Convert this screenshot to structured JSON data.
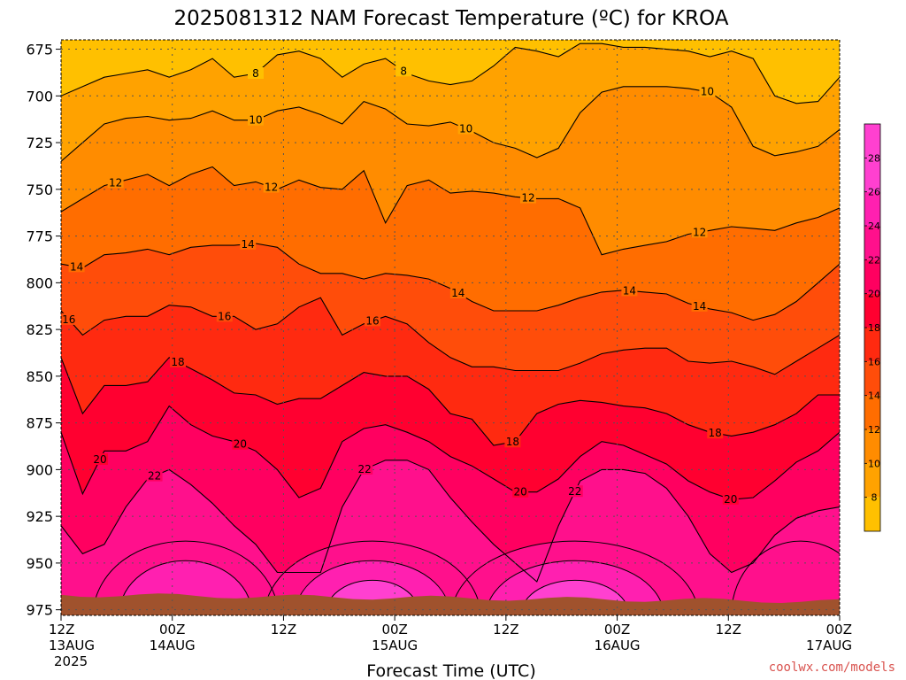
{
  "header": {
    "title": "2025081312 NAM Forecast Temperature (ºC) for KROA"
  },
  "footer": {
    "credit": "coolwx.com/models"
  },
  "colors": {
    "credit": "#d9534f",
    "ground": "#a0522d",
    "grid": "#555555",
    "levels": [
      "#ffc000",
      "#ffa200",
      "#ff8c00",
      "#ff6d00",
      "#ff4d0a",
      "#ff2a10",
      "#ff0030",
      "#ff0060",
      "#ff108c",
      "#ff20b0",
      "#ff40d0"
    ]
  },
  "chart_data": {
    "type": "heatmap",
    "title": "2025081312 NAM Forecast Temperature (ºC) for KROA",
    "xlabel": "Forecast Time (UTC)",
    "ylabel": "",
    "x_ticks": [
      {
        "label": "12Z",
        "sub": "13AUG",
        "sub2": "2025"
      },
      {
        "label": "00Z",
        "sub": "14AUG",
        "sub2": ""
      },
      {
        "label": "12Z",
        "sub": "",
        "sub2": ""
      },
      {
        "label": "00Z",
        "sub": "15AUG",
        "sub2": ""
      },
      {
        "label": "12Z",
        "sub": "",
        "sub2": ""
      },
      {
        "label": "00Z",
        "sub": "16AUG",
        "sub2": ""
      },
      {
        "label": "12Z",
        "sub": "",
        "sub2": ""
      },
      {
        "label": "00Z",
        "sub": "17AUG",
        "sub2": ""
      }
    ],
    "y_ticks": [
      675,
      700,
      725,
      750,
      775,
      800,
      825,
      850,
      875,
      900,
      925,
      950,
      975
    ],
    "ylim": [
      670,
      978
    ],
    "y_reversed": true,
    "contour_levels": [
      8,
      10,
      12,
      14,
      16,
      18,
      20,
      22,
      24,
      26,
      28
    ],
    "colorbar_ticks": [
      8,
      10,
      12,
      14,
      16,
      18,
      20,
      22,
      24,
      26,
      28
    ],
    "colorbar_range": [
      6,
      30
    ],
    "contour_labels": [
      "8",
      "8",
      "10",
      "10",
      "10",
      "12",
      "12",
      "12",
      "12",
      "14",
      "14",
      "14",
      "14",
      "14",
      "16",
      "16",
      "16",
      "18",
      "18",
      "18",
      "20",
      "20",
      "20",
      "20",
      "22",
      "22",
      "22"
    ],
    "series": [
      {
        "level": 8,
        "pressure": [
          700,
          695,
          690,
          688,
          686,
          690,
          686,
          680,
          690,
          688,
          678,
          676,
          680,
          690,
          683,
          680,
          688,
          692,
          694,
          692,
          684,
          674,
          676,
          679,
          672,
          672,
          674,
          674,
          675,
          676,
          679,
          676,
          680,
          700,
          704,
          703,
          690
        ]
      },
      {
        "level": 10,
        "pressure": [
          735,
          725,
          715,
          712,
          711,
          713,
          712,
          708,
          713,
          713,
          708,
          706,
          710,
          715,
          703,
          707,
          715,
          716,
          714,
          719,
          725,
          728,
          733,
          728,
          709,
          698,
          695,
          695,
          695,
          696,
          698,
          706,
          727,
          732,
          730,
          727,
          718
        ]
      },
      {
        "level": 12,
        "pressure": [
          762,
          755,
          748,
          745,
          742,
          748,
          742,
          738,
          748,
          746,
          750,
          745,
          749,
          750,
          740,
          768,
          748,
          745,
          752,
          751,
          752,
          754,
          755,
          755,
          760,
          785,
          782,
          780,
          778,
          774,
          772,
          770,
          771,
          772,
          768,
          765,
          760
        ]
      },
      {
        "level": 14,
        "pressure": [
          790,
          792,
          785,
          784,
          782,
          785,
          781,
          780,
          780,
          779,
          781,
          790,
          795,
          795,
          798,
          795,
          796,
          798,
          803,
          810,
          815,
          815,
          815,
          812,
          808,
          805,
          804,
          805,
          806,
          811,
          814,
          816,
          820,
          817,
          810,
          800,
          790
        ]
      },
      {
        "level": 16,
        "pressure": [
          815,
          828,
          820,
          818,
          818,
          812,
          813,
          818,
          818,
          825,
          822,
          813,
          808,
          828,
          822,
          818,
          822,
          832,
          840,
          845,
          845,
          847,
          847,
          847,
          843,
          838,
          836,
          835,
          835,
          842,
          843,
          842,
          845,
          849,
          842,
          835,
          828
        ]
      },
      {
        "level": 18,
        "pressure": [
          840,
          870,
          855,
          855,
          853,
          840,
          846,
          852,
          859,
          860,
          865,
          862,
          862,
          855,
          848,
          850,
          850,
          857,
          870,
          873,
          887,
          885,
          870,
          865,
          863,
          864,
          866,
          867,
          870,
          876,
          880,
          882,
          880,
          876,
          870,
          860,
          860
        ]
      },
      {
        "level": 20,
        "pressure": [
          880,
          913,
          890,
          890,
          885,
          866,
          876,
          882,
          885,
          890,
          900,
          915,
          910,
          885,
          878,
          876,
          880,
          885,
          893,
          898,
          905,
          912,
          912,
          905,
          893,
          885,
          887,
          892,
          897,
          906,
          912,
          916,
          915,
          906,
          896,
          890,
          880
        ]
      },
      {
        "level": 22,
        "pressure": [
          930,
          945,
          940,
          920,
          905,
          900,
          908,
          918,
          930,
          940,
          955,
          955,
          955,
          920,
          900,
          895,
          895,
          900,
          915,
          928,
          940,
          950,
          960,
          930,
          906,
          900,
          900,
          902,
          910,
          925,
          945,
          955,
          950,
          935,
          926,
          922,
          920
        ]
      }
    ]
  }
}
